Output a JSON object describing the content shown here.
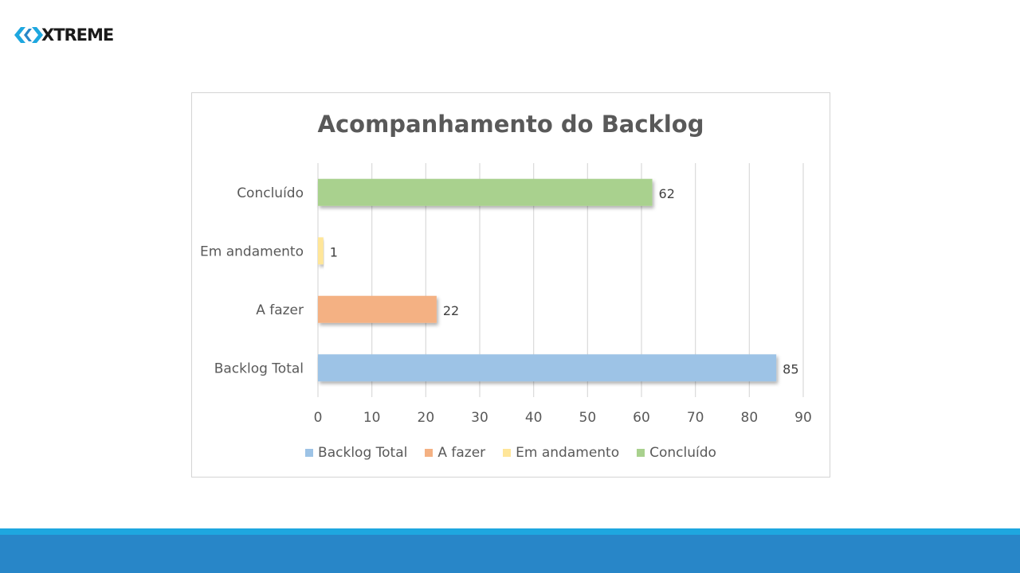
{
  "logo": {
    "text": "XTREME",
    "icon": "xtreme-logo-mark"
  },
  "colors": {
    "backlog_total": "#9dc3e6",
    "a_fazer": "#f4b183",
    "em_andamento": "#ffe699",
    "concluido": "#a9d18e",
    "grid": "#d9d9d9",
    "text": "#595959",
    "footer_light": "#1ea7df",
    "footer_dark": "#2886c8"
  },
  "chart_data": {
    "type": "bar",
    "orientation": "horizontal",
    "title": "Acompanhamento do Backlog",
    "categories": [
      "Backlog Total",
      "A fazer",
      "Em andamento",
      "Concluído"
    ],
    "values": [
      85,
      22,
      1,
      62
    ],
    "xlim": [
      0,
      90
    ],
    "xticks": [
      "0",
      "10",
      "20",
      "30",
      "40",
      "50",
      "60",
      "70",
      "80",
      "90"
    ],
    "grid": "vertical",
    "legend_position": "bottom",
    "legend": [
      "Backlog Total",
      "A fazer",
      "Em andamento",
      "Concluído"
    ]
  }
}
